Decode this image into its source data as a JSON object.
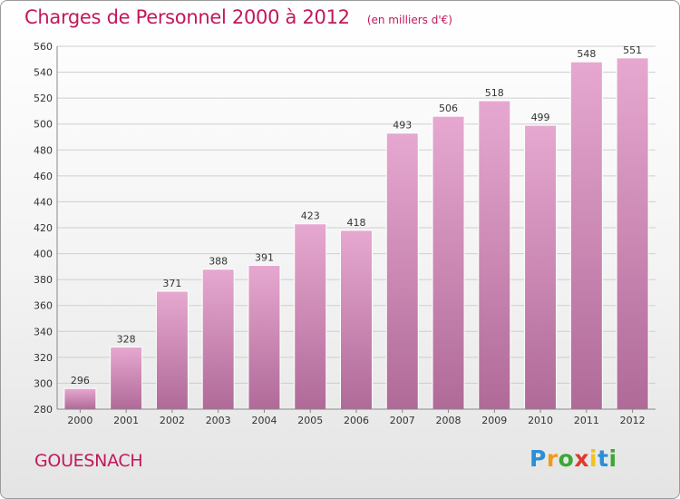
{
  "title": "Charges de Personnel 2000 à 2012",
  "subtitle": "(en milliers d'€)",
  "commune": "GOUESNACH",
  "logo": {
    "letters": [
      "P",
      "r",
      "o",
      "x",
      "i",
      "t",
      "i"
    ],
    "colors": [
      "#2a8fd6",
      "#f29a1b",
      "#3aa835",
      "#e03a2a",
      "#f2c21b",
      "#2a8fd6",
      "#3aa835"
    ]
  },
  "colors": {
    "accent": "#c2185b",
    "bar_top": "#e6a8d0",
    "bar_bottom": "#b06a98",
    "grid": "#cfcfcf",
    "label": "#333333"
  },
  "chart_data": {
    "type": "bar",
    "categories": [
      "2000",
      "2001",
      "2002",
      "2003",
      "2004",
      "2005",
      "2006",
      "2007",
      "2008",
      "2009",
      "2010",
      "2011",
      "2012"
    ],
    "values": [
      296,
      328,
      371,
      388,
      391,
      423,
      418,
      493,
      506,
      518,
      499,
      548,
      551
    ],
    "ylim": [
      280,
      560
    ],
    "yticks": [
      280,
      300,
      320,
      340,
      360,
      380,
      400,
      420,
      440,
      460,
      480,
      500,
      520,
      540,
      560
    ],
    "grid": true,
    "data_labels": true
  }
}
